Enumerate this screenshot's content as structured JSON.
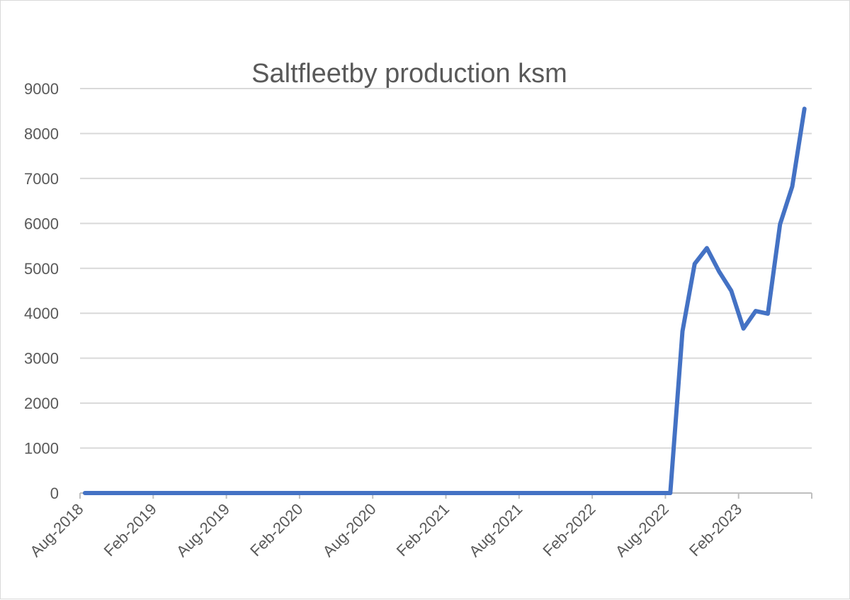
{
  "chart_data": {
    "type": "line",
    "title": "Saltfleetby production ksm",
    "xlabel": "",
    "ylabel": "",
    "ylim": [
      0,
      9000
    ],
    "yticks": [
      "0",
      "1000",
      "2000",
      "3000",
      "4000",
      "5000",
      "6000",
      "7000",
      "8000",
      "9000"
    ],
    "xticks": [
      "Aug-2018",
      "Feb-2019",
      "Aug-2019",
      "Feb-2020",
      "Aug-2020",
      "Feb-2021",
      "Aug-2021",
      "Feb-2022",
      "Aug-2022",
      "Feb-2023"
    ],
    "grid": true,
    "legend": "none",
    "series": [
      {
        "name": "Saltfleetby production ksm",
        "color": "#4472c4",
        "start_month": "Aug-2018",
        "values": [
          0,
          0,
          0,
          0,
          0,
          0,
          0,
          0,
          0,
          0,
          0,
          0,
          0,
          0,
          0,
          0,
          0,
          0,
          0,
          0,
          0,
          0,
          0,
          0,
          0,
          0,
          0,
          0,
          0,
          0,
          0,
          0,
          0,
          0,
          0,
          0,
          0,
          0,
          0,
          0,
          0,
          0,
          0,
          0,
          0,
          0,
          0,
          0,
          0,
          3600,
          5100,
          5450,
          4930,
          4500,
          3660,
          4050,
          3990,
          5980,
          6820,
          8550
        ]
      }
    ]
  }
}
